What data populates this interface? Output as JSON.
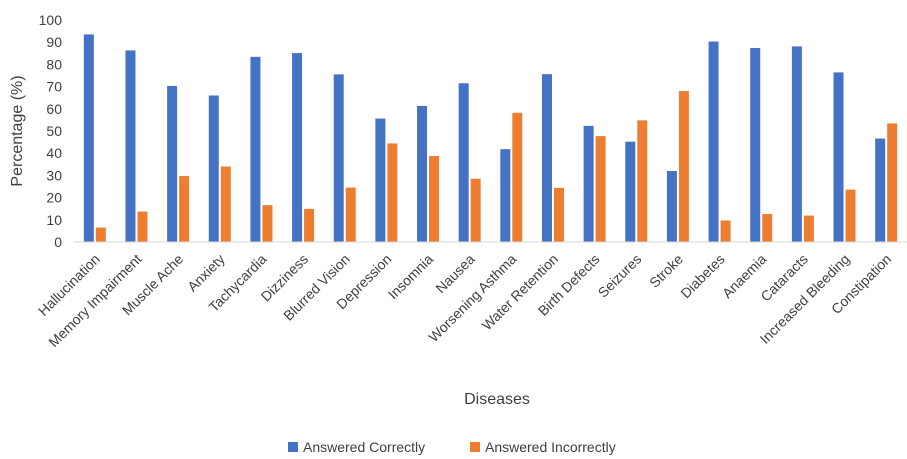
{
  "chart_data": {
    "type": "bar",
    "title": "",
    "xlabel": "Diseases",
    "ylabel": "Percentage (%)",
    "ylim": [
      0,
      100
    ],
    "yticks": [
      "0",
      "10",
      "20",
      "30",
      "40",
      "50",
      "60",
      "70",
      "80",
      "90",
      "100"
    ],
    "grid": false,
    "legend_position": "bottom",
    "categories": [
      "Hallucination",
      "Memory Impairment",
      "Muscle Ache",
      "Anxiety",
      "Tachycardia",
      "Dizziness",
      "Blurred Vision",
      "Depression",
      "Insomnia",
      "Nausea",
      "Worsening Asthma",
      "Water Retention",
      "Birth Defects",
      "Seizures",
      "Stroke",
      "Diabetes",
      "Anaemia",
      "Cataracts",
      "Increased Bleeding",
      "Constipation"
    ],
    "series": [
      {
        "name": "Answered Correctly",
        "color": "#4472C4",
        "values": [
          93.5,
          86.3,
          70.3,
          66.0,
          83.4,
          85.1,
          75.5,
          55.6,
          61.3,
          71.5,
          41.8,
          75.6,
          52.3,
          45.2,
          32.0,
          90.3,
          87.4,
          88.1,
          76.4,
          46.6
        ]
      },
      {
        "name": "Answered Incorrectly",
        "color": "#ED7D31",
        "values": [
          6.5,
          13.7,
          29.7,
          34.0,
          16.6,
          14.9,
          24.5,
          44.4,
          38.7,
          28.5,
          58.2,
          24.4,
          47.7,
          54.8,
          68.0,
          9.7,
          12.6,
          11.9,
          23.6,
          53.4
        ]
      }
    ]
  }
}
